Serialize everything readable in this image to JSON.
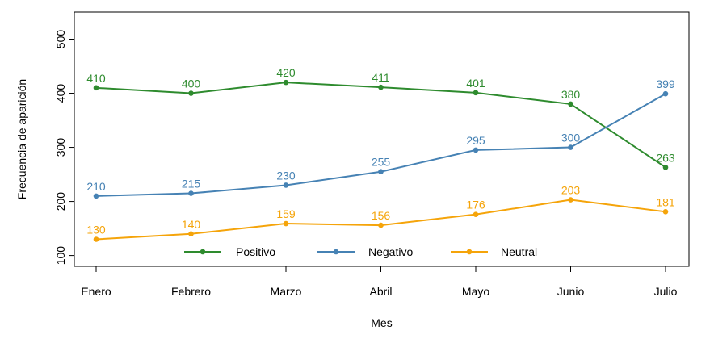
{
  "chart_data": {
    "type": "line",
    "title": "",
    "xlabel": "Mes",
    "ylabel": "Frecuencia de aparición",
    "categories": [
      "Enero",
      "Febrero",
      "Marzo",
      "Abril",
      "Mayo",
      "Junio",
      "Julio"
    ],
    "ylim": [
      80,
      550
    ],
    "yticks": [
      100,
      200,
      300,
      400,
      500
    ],
    "grid": false,
    "legend_position": "bottom",
    "series": [
      {
        "name": "Positivo",
        "color": "#2e8b2e",
        "values": [
          410,
          400,
          420,
          411,
          401,
          380,
          263
        ]
      },
      {
        "name": "Negativo",
        "color": "#4682b4",
        "values": [
          210,
          215,
          230,
          255,
          295,
          300,
          399
        ]
      },
      {
        "name": "Neutral",
        "color": "#f5a40a",
        "values": [
          130,
          140,
          159,
          156,
          176,
          203,
          181
        ]
      }
    ]
  }
}
